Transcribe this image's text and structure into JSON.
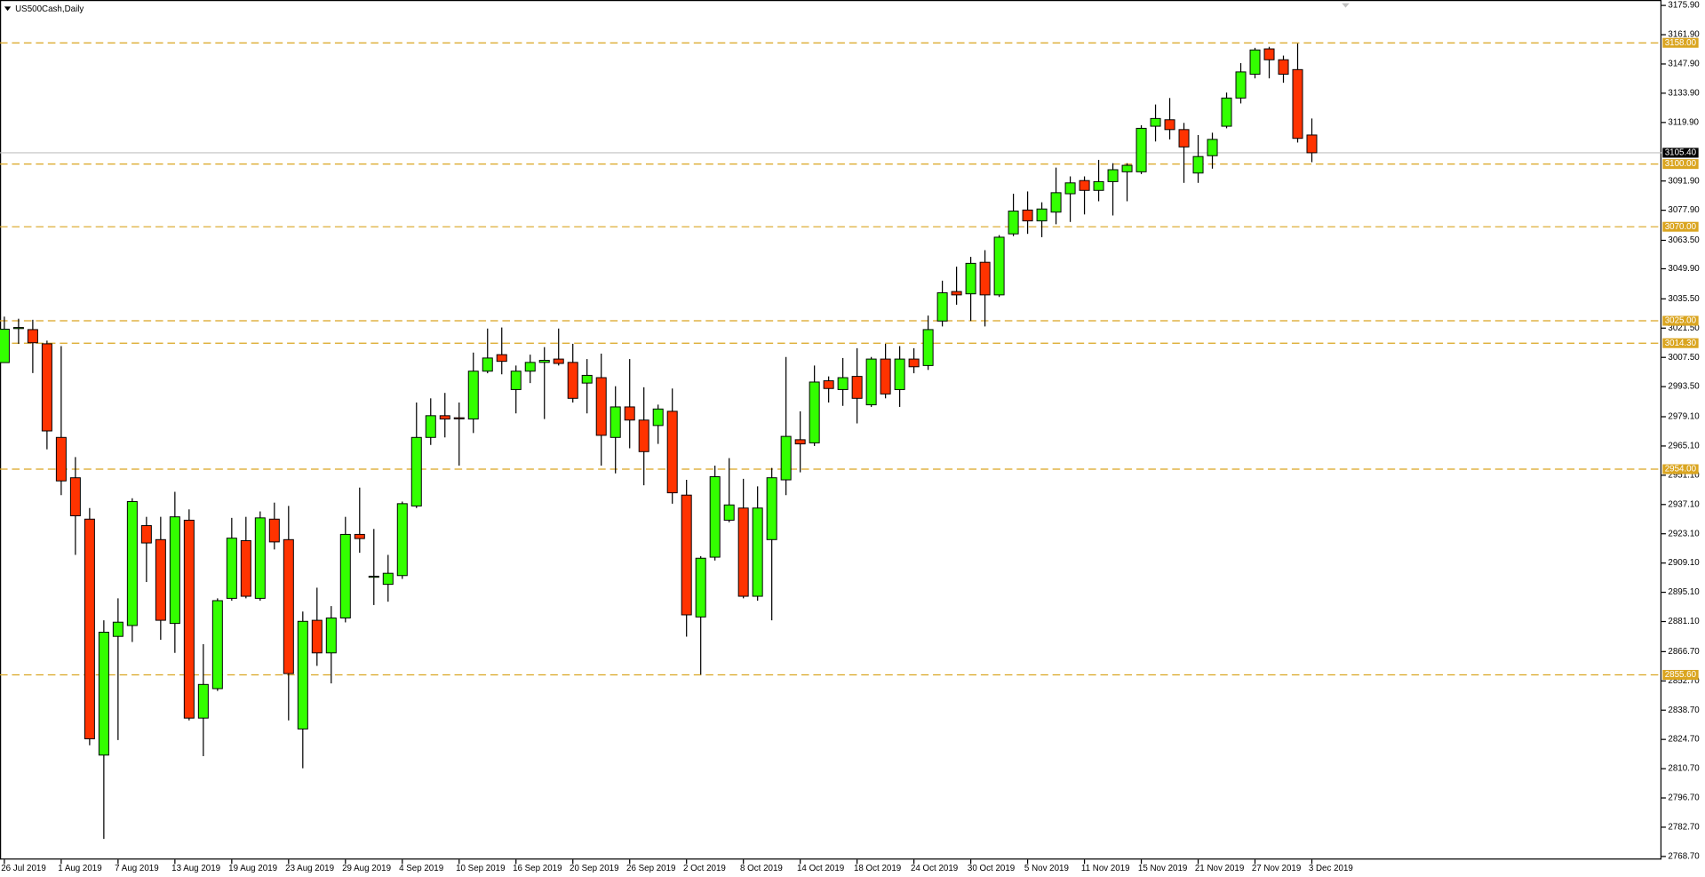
{
  "chart_data": {
    "type": "candlestick",
    "title": "US500Cash,Daily",
    "up_color": "#33ff00",
    "down_color": "#ff3300",
    "categories": [
      "26 Jul 2019",
      null,
      null,
      null,
      "1 Aug 2019",
      null,
      null,
      null,
      "7 Aug 2019",
      null,
      null,
      null,
      "13 Aug 2019",
      null,
      null,
      null,
      "19 Aug 2019",
      null,
      null,
      null,
      "23 Aug 2019",
      null,
      null,
      null,
      "29 Aug 2019",
      null,
      null,
      null,
      "4 Sep 2019",
      null,
      null,
      null,
      "10 Sep 2019",
      null,
      null,
      null,
      "16 Sep 2019",
      null,
      null,
      null,
      "20 Sep 2019",
      null,
      null,
      null,
      "26 Sep 2019",
      null,
      null,
      null,
      "2 Oct 2019",
      null,
      null,
      null,
      "8 Oct 2019",
      null,
      null,
      null,
      "14 Oct 2019",
      null,
      null,
      null,
      "18 Oct 2019",
      null,
      null,
      null,
      "24 Oct 2019",
      null,
      null,
      null,
      "30 Oct 2019",
      null,
      null,
      null,
      "5 Nov 2019",
      null,
      null,
      null,
      "11 Nov 2019",
      null,
      null,
      null,
      "15 Nov 2019",
      null,
      null,
      null,
      "21 Nov 2019",
      null,
      null,
      null,
      "27 Nov 2019",
      null,
      null,
      null,
      "3 Dec 2019"
    ],
    "open": [
      3005,
      3021.5,
      3020.8,
      3014,
      2969.2,
      2949.9,
      2930.1,
      2817.2,
      2874,
      2879.2,
      2927,
      2920.3,
      2880.2,
      2929.6,
      2834.9,
      2849,
      2892.2,
      2919.8,
      2892.2,
      2930.1,
      2920.3,
      2829.7,
      2881.7,
      2866.1,
      2882.8,
      2922.8,
      2902.3,
      2898.9,
      2903.1,
      2936.4,
      2969.2,
      2979.6,
      2978.6,
      2978,
      3000.9,
      3008.8,
      2992.1,
      3000.9,
      3005.1,
      3006.7,
      3005.1,
      2995.2,
      2997.8,
      2969.2,
      2983.8,
      2977.5,
      2974.9,
      2981.7,
      2941.6,
      2883.3,
      2911.9,
      2929.6,
      2935.4,
      2893.2,
      2920.3,
      2948.9,
      2968.1,
      2966.6,
      2996.3,
      2992.1,
      2998.4,
      2984.8,
      3006.7,
      2992.1,
      3006.7,
      3003.6,
      3024.9,
      3039,
      3037.9,
      3053,
      3037.4,
      3066.6,
      3078,
      3072.8,
      3077,
      3085.8,
      3092.1,
      3087.4,
      3091.6,
      3096.3,
      3096.3,
      3118.1,
      3121.2,
      3116.5,
      3095.7,
      3104,
      3118.1,
      3131.6,
      3143,
      3155.1,
      3149.9,
      3145.2,
      3113.9
    ],
    "high": [
      3027,
      3026,
      3025.5,
      3015.5,
      3012.9,
      2959.8,
      2935.4,
      2881.7,
      2892.2,
      2940.1,
      2931.2,
      2931.2,
      2943.2,
      2934.8,
      2870.3,
      2892.2,
      2930.7,
      2931.2,
      2933.8,
      2938,
      2936.4,
      2885.9,
      2897.3,
      2888.5,
      2931.2,
      2945.2,
      2925.4,
      2913,
      2938.5,
      2985.9,
      2987.9,
      2990.5,
      2985.9,
      3009.8,
      3021.3,
      3021.8,
      3003.6,
      3008.8,
      3012.4,
      3021.3,
      3014,
      3006.7,
      3009.3,
      2993.7,
      3006.7,
      2993.2,
      2984.9,
      2992.6,
      2948.9,
      2912.4,
      2955.7,
      2959.3,
      2949.4,
      2945.8,
      2954.6,
      3007.7,
      2981.7,
      3003.6,
      2998.4,
      3007.2,
      3011.9,
      3007.7,
      3014,
      3012.9,
      3011.9,
      3027.5,
      3044.2,
      3050.9,
      3055.6,
      3058.8,
      3066,
      3085.8,
      3086.9,
      3081.7,
      3098.3,
      3094.1,
      3094.1,
      3102,
      3100.4,
      3100.4,
      3118.6,
      3128.5,
      3131.6,
      3119.7,
      3113.9,
      3115,
      3134.2,
      3148.3,
      3155.6,
      3156.1,
      3151.9,
      3157.7,
      3121.8
    ],
    "low": [
      3005,
      3014,
      3000,
      2963.5,
      2941.6,
      2913,
      2821.9,
      2777.1,
      2824.4,
      2871.3,
      2900,
      2872.4,
      2866.1,
      2833.8,
      2816.7,
      2847.9,
      2891.1,
      2892.2,
      2891.1,
      2915.6,
      2833.8,
      2810.9,
      2859.9,
      2851.5,
      2880.7,
      2914,
      2889,
      2890.6,
      2901.5,
      2935.4,
      2965.6,
      2969.2,
      2955.7,
      2971.3,
      2999.9,
      2999.4,
      2980.7,
      2995.2,
      2978,
      3003.6,
      2985.9,
      2980.7,
      2955.7,
      2952,
      2964,
      2946.3,
      2966.1,
      2937.5,
      2873.9,
      2855.7,
      2910.3,
      2928.6,
      2892.2,
      2891.1,
      2881.7,
      2941.6,
      2952.5,
      2965.1,
      2985.9,
      2984.3,
      2975.9,
      2983.8,
      2987.9,
      2983.8,
      2999.9,
      3001.5,
      3022.3,
      3032.7,
      3024.9,
      3022.3,
      3036.4,
      3065.5,
      3066.6,
      3065,
      3071.2,
      3072.3,
      3075.9,
      3082.2,
      3075.4,
      3082.2,
      3095.2,
      3110.8,
      3111.8,
      3091,
      3091,
      3097.8,
      3117.1,
      3129,
      3141,
      3141,
      3138.9,
      3110.3,
      3100.9
    ],
    "close": [
      3021,
      3021.8,
      3014.5,
      2972.3,
      2948.4,
      2931.7,
      2825,
      2876,
      2880.8,
      2938.5,
      2918.7,
      2881.7,
      2931.2,
      2834.9,
      2851,
      2891.1,
      2921,
      2893.2,
      2930.7,
      2919.2,
      2856.2,
      2881.2,
      2866.1,
      2882.8,
      2922.8,
      2920.8,
      2902.8,
      2904.2,
      2937.5,
      2969.2,
      2979.6,
      2978,
      2978.3,
      3000.9,
      3007.2,
      3005.6,
      3000.9,
      3005.1,
      3006.1,
      3004.6,
      2987.9,
      2998.9,
      2970.2,
      2983.8,
      2977.5,
      2962.4,
      2982.8,
      2942.7,
      2884.3,
      2911.4,
      2950.4,
      2936.9,
      2893.2,
      2935.4,
      2949.9,
      2969.7,
      2966.1,
      2995.7,
      2992.6,
      2997.8,
      2987.9,
      3006.7,
      2990,
      3006.7,
      3003,
      3020.8,
      3038.4,
      3037.4,
      3052.5,
      3037.4,
      3065,
      3077.5,
      3072.8,
      3078.5,
      3086.3,
      3091,
      3087.4,
      3091.6,
      3097.3,
      3099.4,
      3117.1,
      3121.8,
      3116.5,
      3108.2,
      3103.6,
      3111.8,
      3131.6,
      3144.1,
      3154.6,
      3149.9,
      3143,
      3112.3,
      3105.4
    ],
    "ylim": [
      2767.2,
      3178.5
    ],
    "yticks": [
      {
        "value": 3175.9,
        "label": "3175.90"
      },
      {
        "value": 3161.9,
        "label": "3161.90"
      },
      {
        "value": 3147.9,
        "label": "3147.90"
      },
      {
        "value": 3133.9,
        "label": "3133.90"
      },
      {
        "value": 3119.9,
        "label": "3119.90"
      },
      {
        "value": 3091.9,
        "label": "3091.90"
      },
      {
        "value": 3077.9,
        "label": "3077.90"
      },
      {
        "value": 3063.5,
        "label": "3063.50"
      },
      {
        "value": 3049.9,
        "label": "3049.90"
      },
      {
        "value": 3035.5,
        "label": "3035.50"
      },
      {
        "value": 3021.5,
        "label": "3021.50"
      },
      {
        "value": 3007.5,
        "label": "3007.50"
      },
      {
        "value": 2993.5,
        "label": "2993.50"
      },
      {
        "value": 2979.1,
        "label": "2979.10"
      },
      {
        "value": 2965.1,
        "label": "2965.10"
      },
      {
        "value": 2951.1,
        "label": "2951.10"
      },
      {
        "value": 2937.1,
        "label": "2937.10"
      },
      {
        "value": 2923.1,
        "label": "2923.10"
      },
      {
        "value": 2909.1,
        "label": "2909.10"
      },
      {
        "value": 2895.1,
        "label": "2895.10"
      },
      {
        "value": 2881.1,
        "label": "2881.10"
      },
      {
        "value": 2866.7,
        "label": "2866.70"
      },
      {
        "value": 2852.7,
        "label": "2852.70"
      },
      {
        "value": 2838.7,
        "label": "2838.70"
      },
      {
        "value": 2824.7,
        "label": "2824.70"
      },
      {
        "value": 2810.7,
        "label": "2810.70"
      },
      {
        "value": 2796.7,
        "label": "2796.70"
      },
      {
        "value": 2782.7,
        "label": "2782.70"
      },
      {
        "value": 2768.7,
        "label": "2768.70"
      }
    ],
    "levels": [
      {
        "value": 3158,
        "label": "3158.00"
      },
      {
        "value": 3100,
        "label": "3100.00"
      },
      {
        "value": 3070,
        "label": "3070.00"
      },
      {
        "value": 3025,
        "label": "3025.00"
      },
      {
        "value": 3014.3,
        "label": "3014.30"
      },
      {
        "value": 2954,
        "label": "2954.00"
      },
      {
        "value": 2855.6,
        "label": "2855.60"
      }
    ],
    "level_color": "#daa520",
    "current_price": {
      "value": 3105.4,
      "label": "3105.40"
    }
  }
}
